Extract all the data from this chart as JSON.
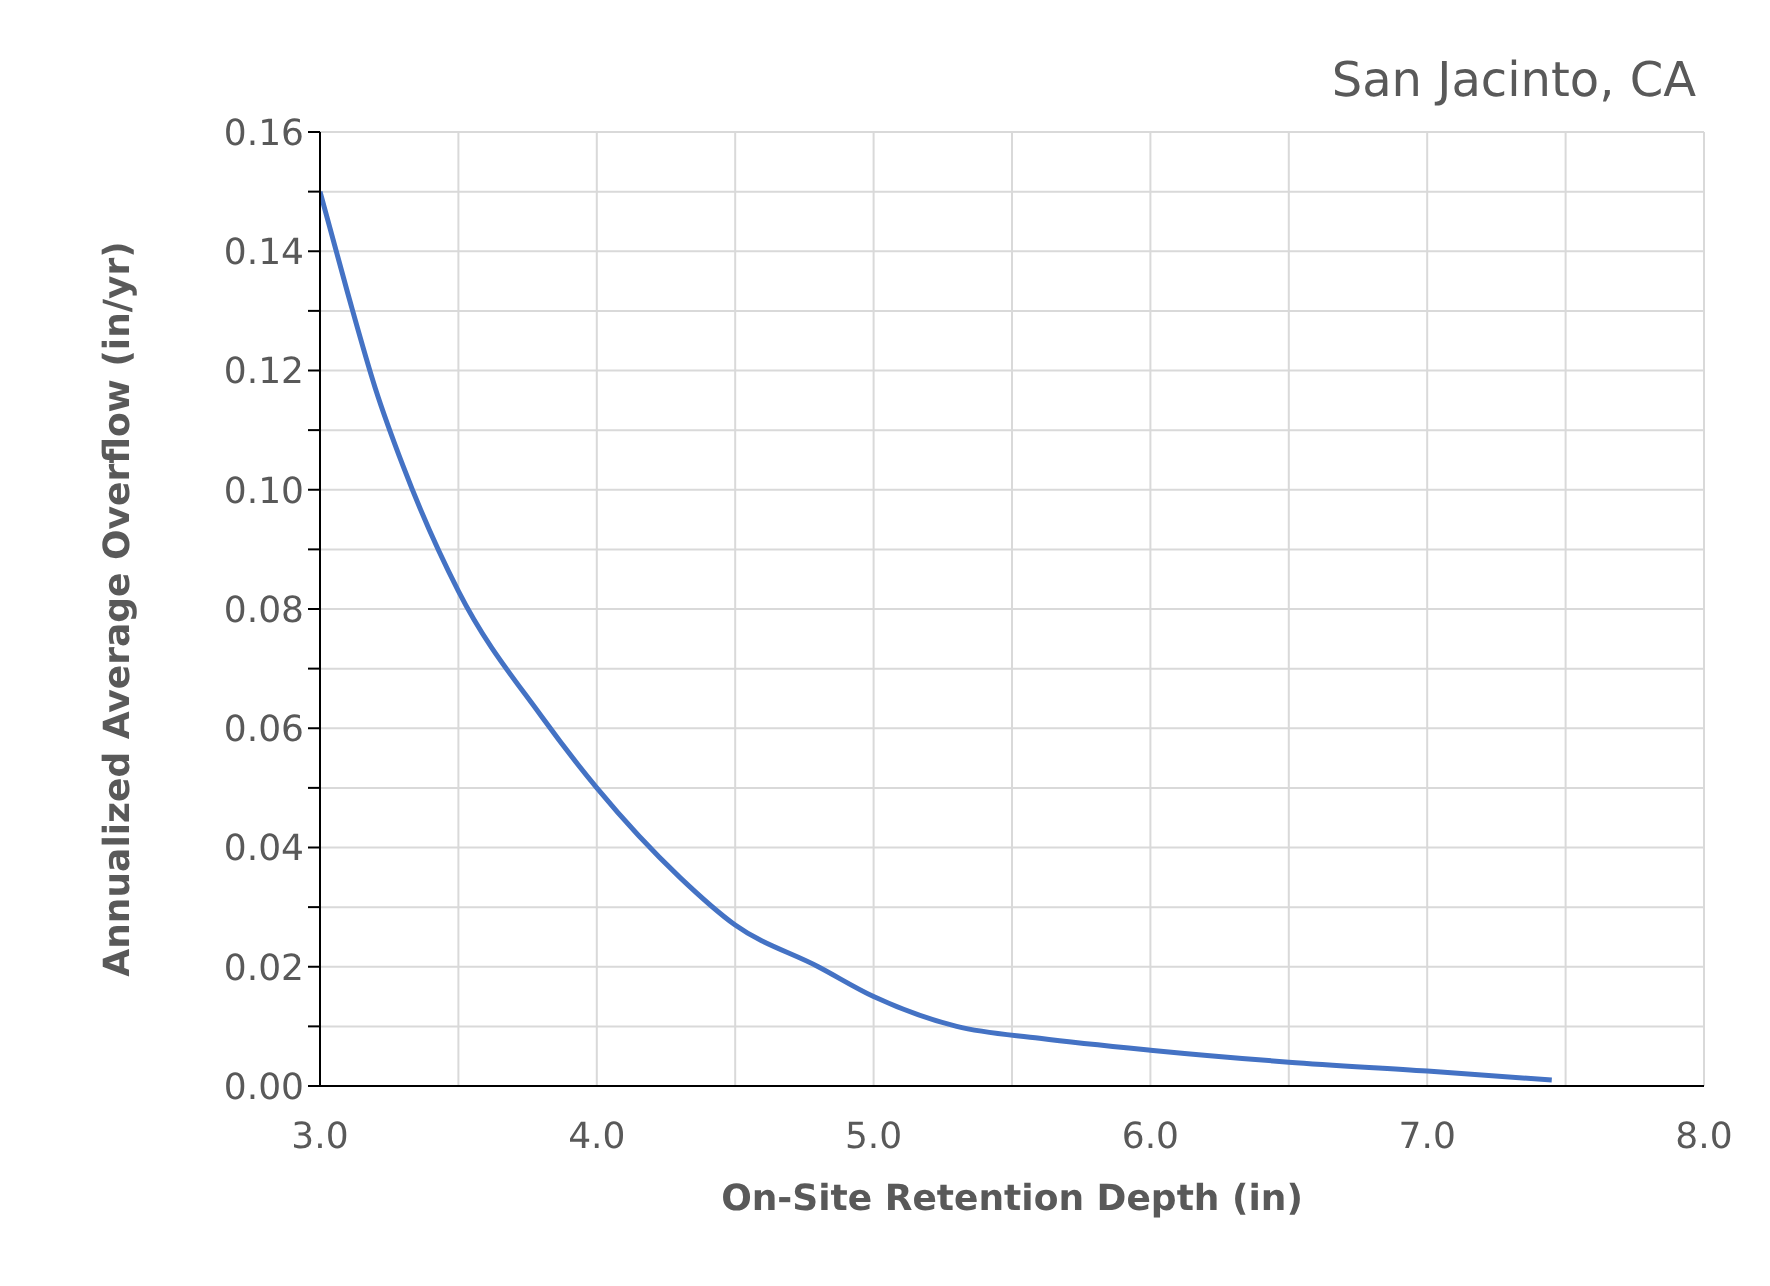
{
  "chart_data": {
    "type": "line",
    "title": "San Jacinto, CA",
    "xlabel": "On-Site Retention Depth (in)",
    "ylabel": "Annualized Average Overflow (in/yr)",
    "series": [
      {
        "color": "#4472c4",
        "x": [
          3.0,
          3.1,
          3.2,
          3.3,
          3.5,
          3.8,
          4.0,
          4.3,
          4.5,
          4.8,
          5.0,
          5.3,
          5.6,
          6.0,
          6.5,
          7.0,
          7.45
        ],
        "values": [
          0.15,
          0.133,
          0.117,
          0.104,
          0.083,
          0.062,
          0.05,
          0.035,
          0.027,
          0.02,
          0.015,
          0.01,
          0.008,
          0.006,
          0.004,
          0.0025,
          0.001
        ]
      }
    ],
    "xlim": [
      3,
      8
    ],
    "xticks": [
      {
        "value": 3,
        "label": "3.0"
      },
      {
        "value": 3.5,
        "label": null
      },
      {
        "value": 4,
        "label": "4.0"
      },
      {
        "value": 4.5,
        "label": null
      },
      {
        "value": 5,
        "label": "5.0"
      },
      {
        "value": 5.5,
        "label": null
      },
      {
        "value": 6,
        "label": "6.0"
      },
      {
        "value": 6.5,
        "label": null
      },
      {
        "value": 7,
        "label": "7.0"
      },
      {
        "value": 7.5,
        "label": null
      },
      {
        "value": 8,
        "label": "8.0"
      }
    ],
    "ylim": [
      0,
      0.16
    ],
    "yticks": [
      {
        "value": 0,
        "label": "0.00"
      },
      {
        "value": 0.01,
        "label": null
      },
      {
        "value": 0.02,
        "label": "0.02"
      },
      {
        "value": 0.03,
        "label": null
      },
      {
        "value": 0.04,
        "label": "0.04"
      },
      {
        "value": 0.05,
        "label": null
      },
      {
        "value": 0.06,
        "label": "0.06"
      },
      {
        "value": 0.07,
        "label": null
      },
      {
        "value": 0.08,
        "label": "0.08"
      },
      {
        "value": 0.09,
        "label": null
      },
      {
        "value": 0.1,
        "label": "0.10"
      },
      {
        "value": 0.11,
        "label": null
      },
      {
        "value": 0.12,
        "label": "0.12"
      },
      {
        "value": 0.13,
        "label": null
      },
      {
        "value": 0.14,
        "label": "0.14"
      },
      {
        "value": 0.15,
        "label": null
      },
      {
        "value": 0.16,
        "label": "0.16"
      }
    ],
    "grid": true,
    "marker": "none",
    "line_style": "solid"
  }
}
